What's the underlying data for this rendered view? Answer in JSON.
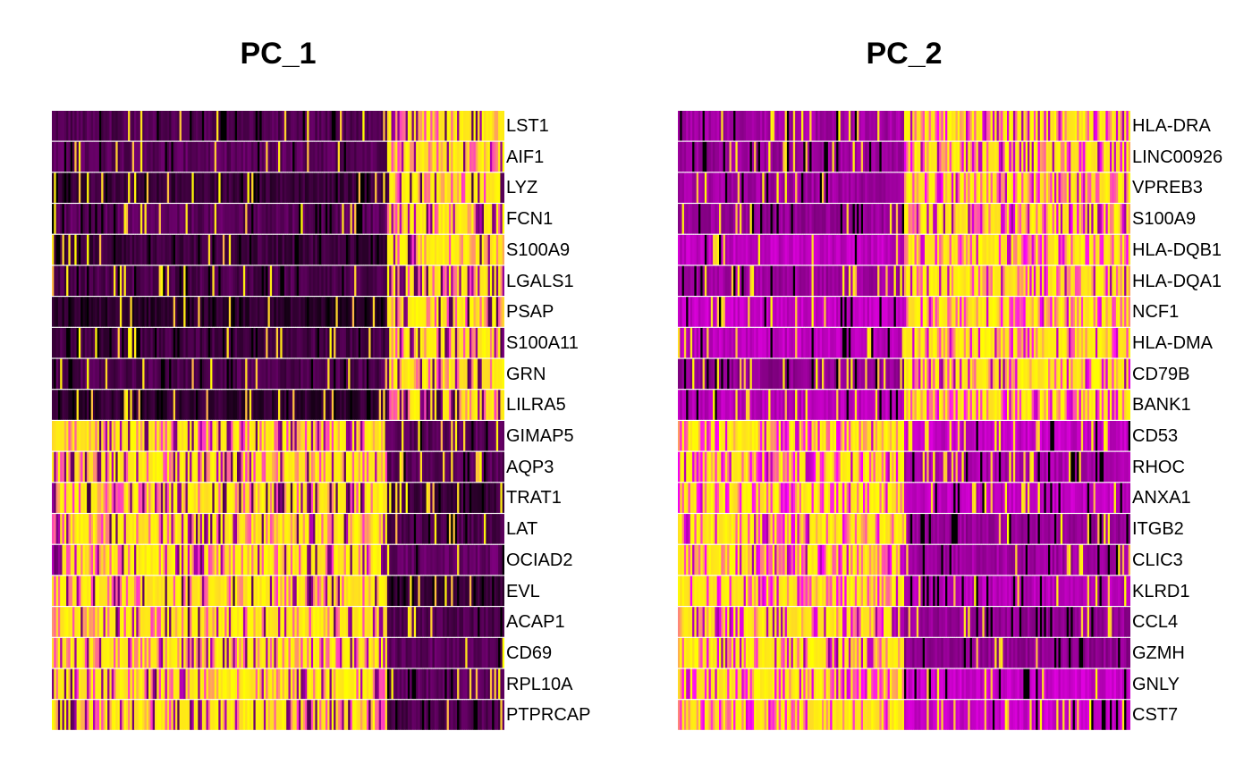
{
  "chart_data": [
    {
      "type": "heatmap",
      "title": "PC_1",
      "genes": [
        "LST1",
        "AIF1",
        "LYZ",
        "FCN1",
        "S100A9",
        "LGALS1",
        "PSAP",
        "S100A11",
        "GRN",
        "LILRA5",
        "GIMAP5",
        "AQP3",
        "TRAT1",
        "LAT",
        "OCIAD2",
        "EVL",
        "ACAP1",
        "CD69",
        "RPL10A",
        "PTPRCAP"
      ],
      "pattern": [
        "high-right",
        "high-right",
        "high-right",
        "high-right",
        "high-right",
        "high-right",
        "high-right",
        "high-right",
        "high-right",
        "high-right",
        "high-left",
        "high-left",
        "high-left",
        "high-left",
        "high-left",
        "high-left",
        "high-left",
        "high-left",
        "high-left",
        "high-left"
      ],
      "split": 0.74,
      "legend": "none"
    },
    {
      "type": "heatmap",
      "title": "PC_2",
      "genes": [
        "HLA-DRA",
        "LINC00926",
        "VPREB3",
        "S100A9",
        "HLA-DQB1",
        "HLA-DQA1",
        "NCF1",
        "HLA-DMA",
        "CD79B",
        "BANK1",
        "CD53",
        "RHOC",
        "ANXA1",
        "ITGB2",
        "CLIC3",
        "KLRD1",
        "CCL4",
        "GZMH",
        "GNLY",
        "CST7"
      ],
      "pattern": [
        "high-right",
        "high-right",
        "high-right",
        "high-right",
        "high-right",
        "high-right",
        "high-right",
        "high-right",
        "high-right",
        "high-right",
        "high-left",
        "high-left",
        "high-left",
        "high-left",
        "high-left",
        "high-left",
        "high-left",
        "high-left",
        "high-left",
        "high-left"
      ],
      "split": 0.5,
      "legend": "none"
    }
  ],
  "colors": {
    "low": "#000000",
    "mid": "#ff00ff",
    "high": "#ffff00"
  }
}
